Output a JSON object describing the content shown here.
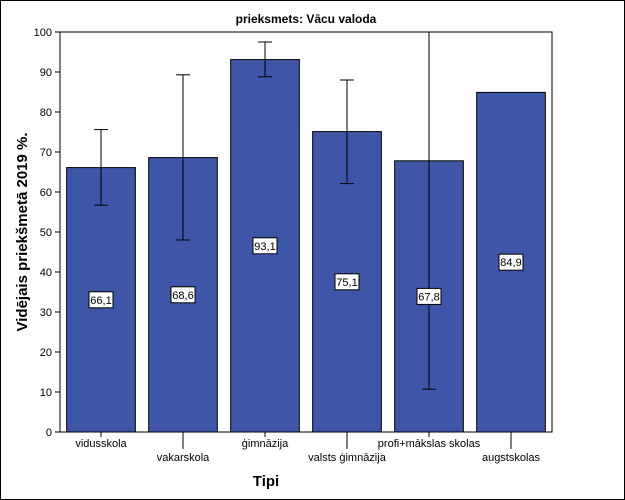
{
  "chart_data": {
    "type": "bar",
    "title": "prieksmets: Vācu valoda",
    "xlabel": "Tipi",
    "ylabel": "Vidējais priekšmetā 2019 %.",
    "ylim": [
      0,
      100
    ],
    "yticks": [
      0,
      10,
      20,
      30,
      40,
      50,
      60,
      70,
      80,
      90,
      100
    ],
    "categories": [
      "vidusskola",
      "vakarskola",
      "ģimnāzija",
      "valsts ģimnāzija",
      "profi+mākslas skolas",
      "augstskolas"
    ],
    "values": [
      66.1,
      68.6,
      93.1,
      75.1,
      67.8,
      84.9
    ],
    "value_labels": [
      "66,1",
      "68,6",
      "93,1",
      "75,1",
      "67,8",
      "84,9"
    ],
    "error_low": [
      56.7,
      48.0,
      88.8,
      62.1,
      10.7,
      100
    ],
    "error_high": [
      75.6,
      89.3,
      97.5,
      88.0,
      100,
      100
    ],
    "bar_color": "#3f56a8",
    "grid": false,
    "legend": "none"
  }
}
